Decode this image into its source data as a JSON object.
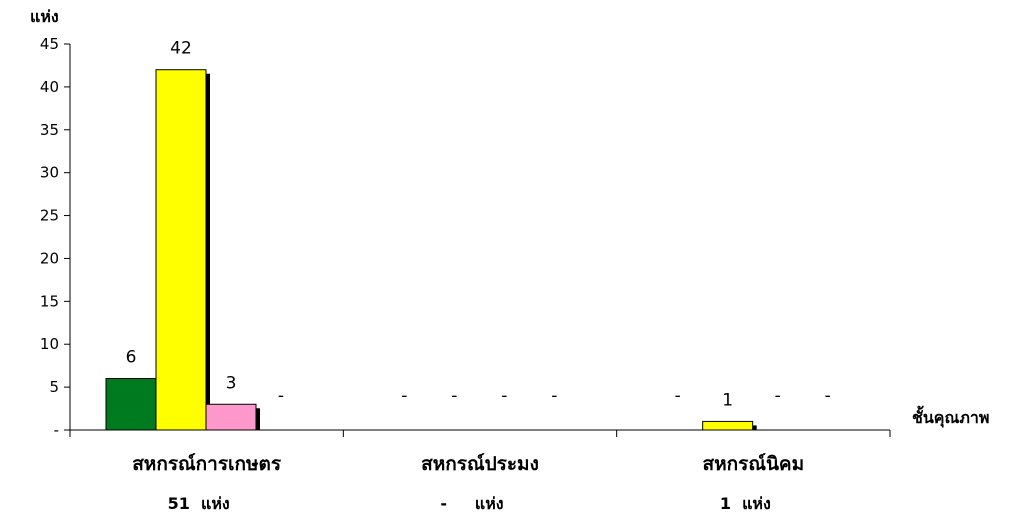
{
  "chart_data": {
    "type": "bar",
    "ylabel": "แห่ง",
    "xlabel": "ชั้นคุณภาพ",
    "ylim": [
      0,
      45
    ],
    "y_ticks": [
      "-",
      "5",
      "10",
      "15",
      "20",
      "25",
      "30",
      "35",
      "40",
      "45"
    ],
    "categories": [
      "สหกรณ์การเกษตร",
      "สหกรณ์ประมง",
      "สหกรณ์นิคม"
    ],
    "totals": [
      "51  แห่ง",
      "-     แห่ง",
      "1  แห่ง"
    ],
    "series": [
      {
        "color": "#007a1e",
        "values": [
          6,
          0,
          0
        ],
        "labels": [
          "6",
          "-",
          "-"
        ]
      },
      {
        "color": "#ffff00",
        "values": [
          42,
          0,
          1
        ],
        "labels": [
          "42",
          "-",
          "1"
        ]
      },
      {
        "color": "#ff99cc",
        "values": [
          3,
          0,
          0
        ],
        "labels": [
          "3",
          "-",
          "-"
        ]
      },
      {
        "color": "#ffffff",
        "values": [
          0,
          0,
          0
        ],
        "labels": [
          "-",
          "-",
          "-"
        ]
      }
    ]
  }
}
